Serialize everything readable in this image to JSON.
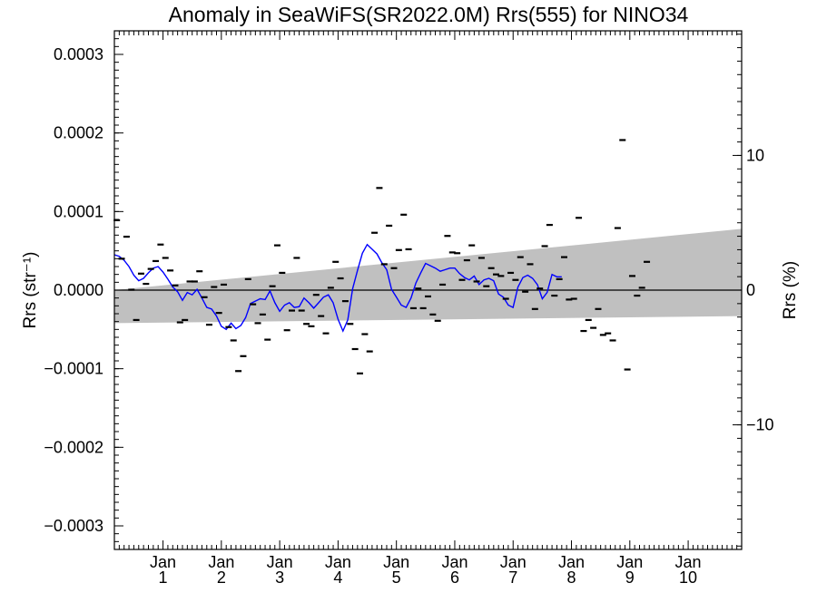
{
  "chart_data": {
    "type": "scatter",
    "title": "Anomaly in SeaWiFS(SR2022.0M) Rrs(555) for NINO34",
    "ylabel_left": "Rrs (str⁻¹)",
    "ylabel_right": "Rrs (%)",
    "ylim_left": [
      -0.00033,
      0.00033
    ],
    "ylim_right": [
      -19.25,
      19.25
    ],
    "xlim_months": [
      0,
      129
    ],
    "yticks_left": [
      {
        "v": 0.0003,
        "label": "0.0003"
      },
      {
        "v": 0.0002,
        "label": "0.0002"
      },
      {
        "v": 0.0001,
        "label": "0.0001"
      },
      {
        "v": 0.0,
        "label": "0.0000"
      },
      {
        "v": -0.0001,
        "label": "−0.0001"
      },
      {
        "v": -0.0002,
        "label": "−0.0002"
      },
      {
        "v": -0.0003,
        "label": "−0.0003"
      }
    ],
    "yticks_right": [
      {
        "v": 10,
        "label": "10"
      },
      {
        "v": 0,
        "label": "0"
      },
      {
        "v": -10,
        "label": "−10"
      }
    ],
    "xticks": [
      {
        "m": 10,
        "top": "Jan",
        "bottom": "1"
      },
      {
        "m": 22,
        "top": "Jan",
        "bottom": "2"
      },
      {
        "m": 34,
        "top": "Jan",
        "bottom": "3"
      },
      {
        "m": 46,
        "top": "Jan",
        "bottom": "4"
      },
      {
        "m": 58,
        "top": "Jan",
        "bottom": "5"
      },
      {
        "m": 70,
        "top": "Jan",
        "bottom": "6"
      },
      {
        "m": 82,
        "top": "Jan",
        "bottom": "7"
      },
      {
        "m": 94,
        "top": "Jan",
        "bottom": "8"
      },
      {
        "m": 106,
        "top": "Jan",
        "bottom": "9"
      },
      {
        "m": 118,
        "top": "Jan",
        "bottom": "10"
      }
    ],
    "uncertainty_band": {
      "color": "#c0c0c0",
      "start": {
        "m": 0,
        "upper": 0.0,
        "lower": -4.2e-05
      },
      "end": {
        "m": 129,
        "upper": 7.8e-05,
        "lower": -3.3e-05
      }
    },
    "zero_line": 0,
    "monthly_points": {
      "color": "#000000",
      "values": [
        8.9e-05,
        4e-05,
        6.8e-05,
        5e-07,
        -3.8e-05,
        2.1e-05,
        8e-06,
        2.7e-05,
        3.7e-05,
        5.8e-05,
        4.1e-05,
        2.5e-05,
        6e-06,
        -4.1e-05,
        -3.8e-05,
        1.1e-05,
        1.1e-05,
        2.4e-05,
        -9e-06,
        -4.4e-05,
        4e-06,
        -2.9e-05,
        7e-06,
        -4.7e-05,
        -6.4e-05,
        -0.000103,
        -8.4e-05,
        1.4e-05,
        -1.8e-05,
        -4.2e-05,
        -3.1e-05,
        -6.3e-05,
        5e-06,
        5.7e-05,
        2.2e-05,
        -5.1e-05,
        -2.6e-05,
        4.1e-05,
        -2.6e-05,
        -4.3e-05,
        -4.6e-05,
        -6e-06,
        -3.3e-05,
        -5.5e-05,
        3e-06,
        3.6e-05,
        1.5e-05,
        -1.4e-05,
        -4.3e-05,
        -7.5e-05,
        -0.000106,
        -5.6e-05,
        -7.8e-05,
        7.3e-05,
        0.00013,
        3.3e-05,
        8.2e-05,
        2.8e-05,
        5.1e-05,
        9.6e-05,
        5.2e-05,
        -2.3e-05,
        2e-06,
        -2.3e-05,
        -8e-06,
        -3.1e-05,
        -3.9e-05,
        7e-06,
        6.9e-05,
        4.8e-05,
        4.7e-05,
        1.3e-05,
        3.8e-05,
        5.7e-05,
        1.1e-05,
        4.1e-05,
        5e-06,
        2.8e-05,
        2e-05,
        1.8e-05,
        -1.1e-05,
        2.2e-05,
        1.3e-05,
        4.2e-05,
        -2e-06,
        3.3e-05,
        -2.4e-05,
        2e-06,
        5.6e-05,
        8.3e-05,
        -7e-06,
        1.4e-05,
        4.2e-05,
        -1.2e-05,
        -1.1e-05,
        9.2e-05,
        -5.2e-05,
        -3.8e-05,
        -4.8e-05,
        -2.4e-05,
        -5.7e-05,
        -5.5e-05,
        -6.4e-05,
        7.9e-05,
        0.000191,
        -0.000101,
        1.8e-05,
        -7e-06,
        3e-06,
        3.6e-05
      ]
    },
    "running_mean": {
      "color": "#0000ff",
      "points": [
        [
          0,
          4.5e-05
        ],
        [
          1,
          4.3e-05
        ],
        [
          2,
          3.8e-05
        ],
        [
          3,
          3e-05
        ],
        [
          4,
          1.9e-05
        ],
        [
          5,
          1.2e-05
        ],
        [
          6,
          1.5e-05
        ],
        [
          7,
          2.2e-05
        ],
        [
          8,
          2.8e-05
        ],
        [
          9,
          3e-05
        ],
        [
          10,
          2.3e-05
        ],
        [
          11,
          1.4e-05
        ],
        [
          12,
          4e-06
        ],
        [
          13,
          -2e-06
        ],
        [
          14,
          -1.3e-05
        ],
        [
          15,
          -3e-06
        ],
        [
          16,
          -6e-06
        ],
        [
          17,
          1e-06
        ],
        [
          18,
          -1e-05
        ],
        [
          19,
          -2.2e-05
        ],
        [
          20,
          -2.4e-05
        ],
        [
          21,
          -3.3e-05
        ],
        [
          22,
          -4.6e-05
        ],
        [
          23,
          -5e-05
        ],
        [
          24,
          -4.2e-05
        ],
        [
          25,
          -4.9e-05
        ],
        [
          26,
          -4.5e-05
        ],
        [
          27,
          -3.5e-05
        ],
        [
          28,
          -1.7e-05
        ],
        [
          29,
          -1.4e-05
        ],
        [
          30,
          -1.1e-05
        ],
        [
          31,
          -1.2e-05
        ],
        [
          32,
          -1e-06
        ],
        [
          33,
          -1.6e-05
        ],
        [
          34,
          -2.7e-05
        ],
        [
          35,
          -1.9e-05
        ],
        [
          36,
          -1.6e-05
        ],
        [
          37,
          -2.2e-05
        ],
        [
          38,
          -2.1e-05
        ],
        [
          39,
          -1e-05
        ],
        [
          40,
          -1.6e-05
        ],
        [
          41,
          -2.3e-05
        ],
        [
          42,
          -1.6e-05
        ],
        [
          43,
          -9e-06
        ],
        [
          44,
          -6e-06
        ],
        [
          45,
          -1.6e-05
        ],
        [
          46,
          -3.7e-05
        ],
        [
          47,
          -5.2e-05
        ],
        [
          48,
          -3.8e-05
        ],
        [
          49,
          2e-06
        ],
        [
          50,
          2.5e-05
        ],
        [
          51,
          4.7e-05
        ],
        [
          52,
          5.8e-05
        ],
        [
          53,
          5.2e-05
        ],
        [
          54,
          4.6e-05
        ],
        [
          55,
          3.5e-05
        ],
        [
          56,
          2.6e-05
        ],
        [
          57,
          1e-06
        ],
        [
          58,
          -9e-06
        ],
        [
          59,
          -1.9e-05
        ],
        [
          60,
          -2.2e-05
        ],
        [
          61,
          -1e-05
        ],
        [
          62,
          9e-06
        ],
        [
          63,
          2.2e-05
        ],
        [
          64,
          3.4e-05
        ],
        [
          65,
          3.1e-05
        ],
        [
          66,
          2.8e-05
        ],
        [
          67,
          2.4e-05
        ],
        [
          68,
          2.6e-05
        ],
        [
          69,
          2.8e-05
        ],
        [
          70,
          2.8e-05
        ],
        [
          71,
          2.1e-05
        ],
        [
          72,
          1.6e-05
        ],
        [
          73,
          1.3e-05
        ],
        [
          74,
          1.8e-05
        ],
        [
          75,
          7e-06
        ],
        [
          76,
          1.3e-05
        ],
        [
          77,
          1.5e-05
        ],
        [
          78,
          1.2e-05
        ],
        [
          79,
          -5e-06
        ],
        [
          80,
          -9e-06
        ],
        [
          81,
          -1.9e-05
        ],
        [
          82,
          -2.2e-05
        ],
        [
          83,
          4e-06
        ],
        [
          84,
          1.6e-05
        ],
        [
          85,
          1.9e-05
        ],
        [
          86,
          1.5e-05
        ],
        [
          87,
          7e-06
        ],
        [
          88,
          -1.1e-05
        ],
        [
          89,
          -3e-06
        ],
        [
          90,
          2e-05
        ],
        [
          91,
          1.7e-05
        ],
        [
          92,
          1.7e-05
        ]
      ]
    }
  }
}
